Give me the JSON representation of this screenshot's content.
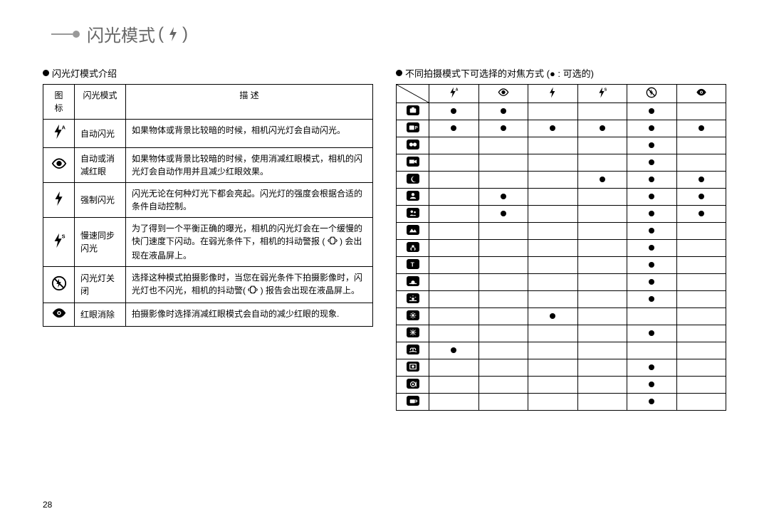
{
  "page_number": "28",
  "title": "闪光模式",
  "left": {
    "heading": "闪光灯模式介绍",
    "columns": {
      "c1": "图 标",
      "c2": "闪光模式",
      "c3": "描 述"
    },
    "rows": [
      {
        "icon": "flash-auto",
        "mode": "自动闪光",
        "desc": "如果物体或背景比较暗的时候，相机闪光灯会自动闪光。"
      },
      {
        "icon": "eye",
        "mode": "自动或消减红眼",
        "desc": "如果物体或背景比较暗的时候，使用消减红眼模式，相机的闪光灯会自动作用并且减少红眼效果。"
      },
      {
        "icon": "flash",
        "mode": "强制闪光",
        "desc": "闪光无论在何种灯光下都会亮起。闪光灯的强度会根据合适的条件自动控制。"
      },
      {
        "icon": "flash-slow",
        "mode": "慢速同步闪光",
        "desc": "为了得到一个平衡正确的曝光，相机的闪光灯会在一个缓慢的快门速度下闪动。在弱光条件下，相机的抖动警报 ( __SHAKE__ ) 会出现在液晶屏上。"
      },
      {
        "icon": "flash-off",
        "mode": "闪光灯关闭",
        "desc": "选择这种模式拍摄影像时，当您在弱光条件下拍摄影像时，闪光灯也不闪光，相机的抖动警( __SHAKE__ ) 报告会出现在液晶屏上。"
      },
      {
        "icon": "eye-fill",
        "mode": "红眼消除",
        "desc": "拍摄影像时选择消减红眼模式会自动的减少红眼的现象."
      }
    ]
  },
  "right": {
    "heading": "不同拍摄模式下可选择的对焦方式 (● : 可选的)",
    "col_icons": [
      "flash-auto",
      "eye",
      "flash",
      "flash-slow",
      "flash-off",
      "eye-fill"
    ],
    "row_icons": [
      "camera",
      "camera-p",
      "dual",
      "movie",
      "night",
      "portrait",
      "children",
      "landscape",
      "closeup",
      "text",
      "sunset",
      "dawn",
      "backlight",
      "fireworks",
      "beach",
      "frame",
      "food",
      "cafe"
    ],
    "matrix": [
      [
        1,
        1,
        0,
        0,
        1,
        0
      ],
      [
        1,
        1,
        1,
        1,
        1,
        1
      ],
      [
        0,
        0,
        0,
        0,
        1,
        0
      ],
      [
        0,
        0,
        0,
        0,
        1,
        0
      ],
      [
        0,
        0,
        0,
        1,
        1,
        1
      ],
      [
        0,
        1,
        0,
        0,
        1,
        1
      ],
      [
        0,
        1,
        0,
        0,
        1,
        1
      ],
      [
        0,
        0,
        0,
        0,
        1,
        0
      ],
      [
        0,
        0,
        0,
        0,
        1,
        0
      ],
      [
        0,
        0,
        0,
        0,
        1,
        0
      ],
      [
        0,
        0,
        0,
        0,
        1,
        0
      ],
      [
        0,
        0,
        0,
        0,
        1,
        0
      ],
      [
        0,
        0,
        1,
        0,
        0,
        0
      ],
      [
        0,
        0,
        0,
        0,
        1,
        0
      ],
      [
        1,
        0,
        0,
        0,
        0,
        0
      ],
      [
        0,
        0,
        0,
        0,
        1,
        0
      ],
      [
        0,
        0,
        0,
        0,
        1,
        0
      ],
      [
        0,
        0,
        0,
        0,
        1,
        0
      ]
    ]
  },
  "colors": {
    "text": "#000000",
    "title": "#666666",
    "line": "#999999",
    "bg": "#ffffff"
  }
}
